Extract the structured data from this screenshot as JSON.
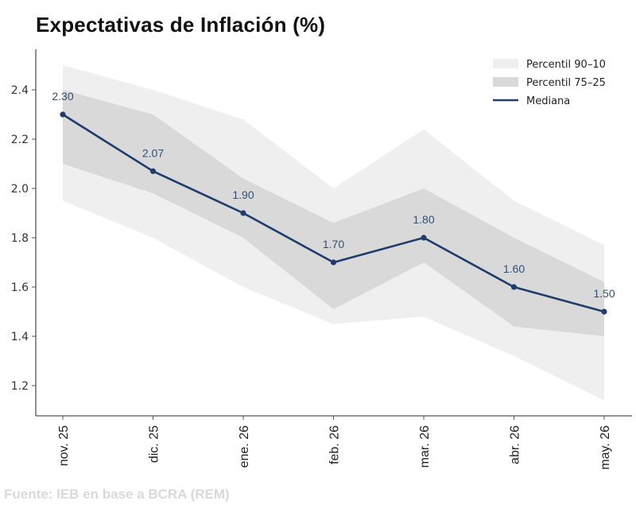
{
  "chart_data": {
    "type": "line",
    "title": "Expectativas de Inflación (%)",
    "source": "Fuente: IEB en base a BCRA (REM)",
    "xlabel": "",
    "ylabel": "",
    "categories": [
      "nov. 25",
      "dic. 25",
      "ene. 26",
      "feb. 26",
      "mar. 26",
      "abr. 26",
      "may. 26"
    ],
    "ylim": [
      1.1,
      2.5
    ],
    "yticks": [
      1.2,
      1.4,
      1.6,
      1.8,
      2.0,
      2.2,
      2.4
    ],
    "ytick_labels": [
      "1.2",
      "1.4",
      "1.6",
      "1.8",
      "2.0",
      "2.2",
      "2.4"
    ],
    "grid": false,
    "legend_position": "top-right",
    "series": [
      {
        "name": "Mediana",
        "kind": "line",
        "color": "#1f3d6b",
        "values": [
          2.3,
          2.07,
          1.9,
          1.7,
          1.8,
          1.6,
          1.5
        ],
        "data_labels": [
          "2.30",
          "2.07",
          "1.90",
          "1.70",
          "1.80",
          "1.60",
          "1.50"
        ]
      },
      {
        "name": "Percentil 90–10",
        "kind": "band",
        "color": "#efefef",
        "upper": [
          2.5,
          2.4,
          2.28,
          2.0,
          2.24,
          1.95,
          1.77
        ],
        "lower": [
          1.95,
          1.8,
          1.6,
          1.45,
          1.48,
          1.32,
          1.14
        ]
      },
      {
        "name": "Percentil 75–25",
        "kind": "band",
        "color": "#d9d9d9",
        "upper": [
          2.4,
          2.3,
          2.04,
          1.86,
          2.0,
          1.8,
          1.62
        ],
        "lower": [
          2.1,
          1.98,
          1.8,
          1.51,
          1.7,
          1.44,
          1.4
        ]
      }
    ],
    "legend": [
      {
        "label": "Percentil 90–10",
        "swatch": "band",
        "color": "#efefef"
      },
      {
        "label": "Percentil 75–25",
        "swatch": "band",
        "color": "#d9d9d9"
      },
      {
        "label": "Mediana",
        "swatch": "line",
        "color": "#1f3d6b"
      }
    ]
  }
}
